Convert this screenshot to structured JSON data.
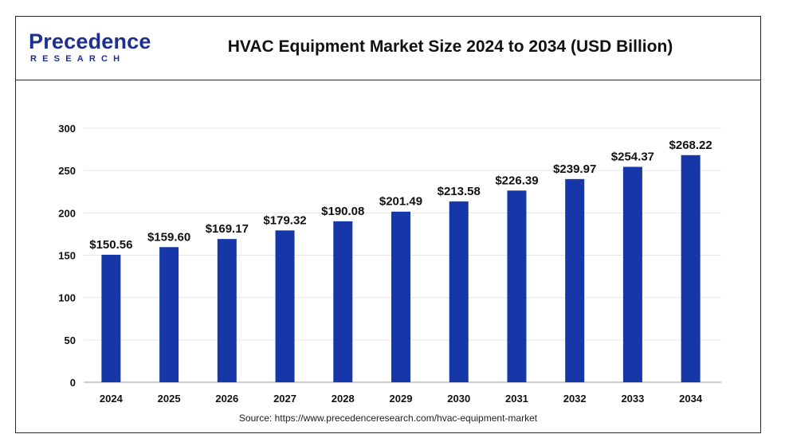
{
  "logo": {
    "main": "Precedence",
    "sub": "RESEARCH"
  },
  "title": "HVAC Equipment Market Size 2024 to 2034 (USD Billion)",
  "source": "Source: https://www.precedenceresearch.com/hvac-equipment-market",
  "colors": {
    "bar": "#1637a8",
    "grid": "#e6e6e6",
    "axis": "#999999",
    "brand": "#1d2f8f"
  },
  "chart_data": {
    "type": "bar",
    "title": "HVAC Equipment Market Size 2024 to 2034 (USD Billion)",
    "xlabel": "",
    "ylabel": "",
    "categories": [
      "2024",
      "2025",
      "2026",
      "2027",
      "2028",
      "2029",
      "2030",
      "2031",
      "2032",
      "2033",
      "2034"
    ],
    "values": [
      150.56,
      159.6,
      169.17,
      179.32,
      190.08,
      201.49,
      213.58,
      226.39,
      239.97,
      254.37,
      268.22
    ],
    "data_labels": [
      "$150.56",
      "$159.60",
      "$169.17",
      "$179.32",
      "$190.08",
      "$201.49",
      "$213.58",
      "$226.39",
      "$239.97",
      "$254.37",
      "$268.22"
    ],
    "ylim": [
      0,
      300
    ],
    "yticks": [
      "0",
      "50",
      "100",
      "150",
      "200",
      "250",
      "300"
    ],
    "grid": true,
    "legend": "none"
  }
}
